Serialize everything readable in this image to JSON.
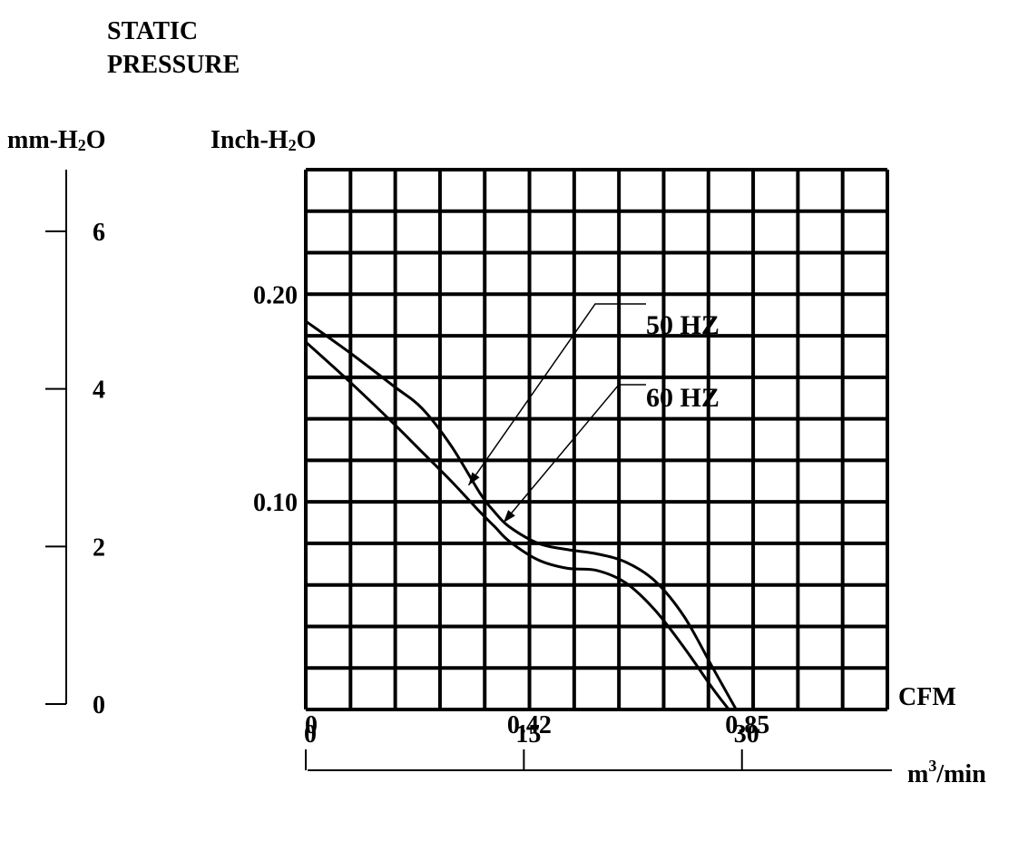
{
  "chart_data": {
    "type": "line",
    "title_line1": "STATIC",
    "title_line2": "PRESSURE",
    "left_unit": {
      "base": "mm-H",
      "sub": "2",
      "tail": "O"
    },
    "inner_unit": {
      "base": "Inch-H",
      "sub": "2",
      "tail": "O"
    },
    "x_unit": "CFM",
    "x2_unit": {
      "base": "m",
      "sup": "3",
      "tail": "/min"
    },
    "xlim": [
      0,
      40
    ],
    "ylim": [
      0,
      0.26
    ],
    "mm_ticks": [
      {
        "label": "0",
        "value": 0
      },
      {
        "label": "2",
        "value": 2
      },
      {
        "label": "4",
        "value": 4
      },
      {
        "label": "6",
        "value": 6
      }
    ],
    "inch_ticks": [
      {
        "label": "0.10",
        "value": 0.1
      },
      {
        "label": "0.20",
        "value": 0.2
      }
    ],
    "cfm_ticks": [
      {
        "label": "0",
        "value": 0
      },
      {
        "label": "15",
        "value": 15
      },
      {
        "label": "30",
        "value": 30
      }
    ],
    "m3_ticks": [
      {
        "label": "0",
        "value": 0
      },
      {
        "label": "0.42",
        "value": 15
      },
      {
        "label": "0.85",
        "value": 30
      }
    ],
    "series": [
      {
        "name": "50 HZ",
        "x": [
          0,
          3,
          6,
          8,
          10,
          12,
          13,
          14,
          16,
          18,
          20,
          22,
          24,
          26,
          28,
          29.6
        ],
        "y": [
          0.187,
          0.172,
          0.156,
          0.145,
          0.127,
          0.104,
          0.095,
          0.088,
          0.08,
          0.077,
          0.075,
          0.071,
          0.062,
          0.045,
          0.02,
          0.0
        ]
      },
      {
        "name": "60 HZ",
        "x": [
          0,
          3,
          6,
          8,
          10,
          12,
          13,
          14,
          16,
          18,
          20,
          22,
          24,
          26,
          28,
          29.1
        ],
        "y": [
          0.177,
          0.158,
          0.138,
          0.124,
          0.11,
          0.095,
          0.088,
          0.081,
          0.072,
          0.068,
          0.067,
          0.061,
          0.048,
          0.03,
          0.01,
          0.0
        ]
      }
    ],
    "annotations": [
      {
        "text": "50 HZ",
        "target": [
          11.2,
          0.108
        ]
      },
      {
        "text": "60 HZ",
        "target": [
          13.6,
          0.09
        ]
      }
    ],
    "grid": true
  }
}
